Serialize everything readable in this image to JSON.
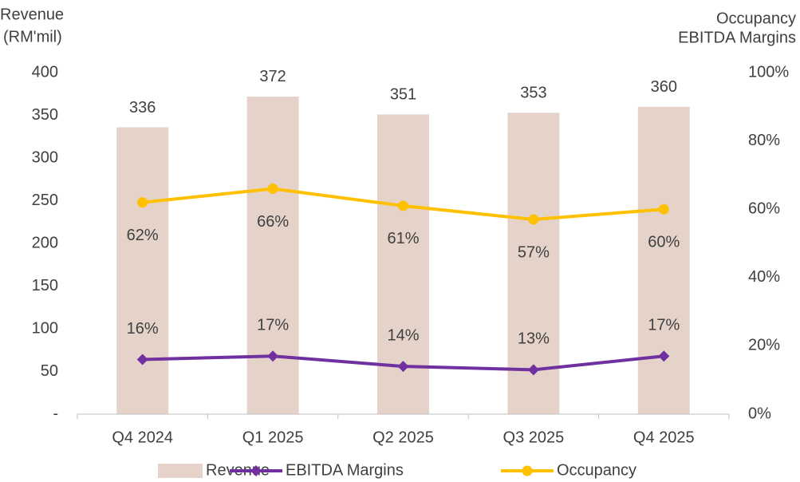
{
  "chart_data": {
    "type": "bar_line",
    "ylabel": [
      "Revenue",
      "(RM'mil)"
    ],
    "y2label": [
      "Occupancy",
      "EBITDA Margins"
    ],
    "categories": [
      "Q4 2024",
      "Q1 2025",
      "Q2 2025",
      "Q3 2025",
      "Q4 2025"
    ],
    "series": [
      {
        "name": "Revenue",
        "type": "bar",
        "color": "#e5d3ca",
        "values": [
          336,
          372,
          351,
          353,
          360
        ]
      },
      {
        "name": "EBITDA Margins",
        "type": "line",
        "marker": "diamond",
        "axis": "y2",
        "color": "#7030a0",
        "values": [
          16,
          17,
          14,
          13,
          17
        ],
        "value_labels": [
          "16%",
          "17%",
          "14%",
          "13%",
          "17%"
        ]
      },
      {
        "name": "Occupancy",
        "type": "line",
        "marker": "circle",
        "axis": "y2",
        "color": "#ffc000",
        "values": [
          62,
          66,
          61,
          57,
          60
        ],
        "value_labels": [
          "62%",
          "66%",
          "61%",
          "57%",
          "60%"
        ]
      }
    ],
    "ylim": [
      0,
      400
    ],
    "yticks": [
      {
        "value": 0,
        "label": "-"
      },
      50,
      100,
      150,
      200,
      250,
      300,
      350,
      400
    ],
    "y2lim": [
      0,
      100
    ],
    "y2ticks": [
      {
        "value": 0,
        "label": "0%"
      },
      {
        "value": 20,
        "label": "20%"
      },
      {
        "value": 40,
        "label": "40%"
      },
      {
        "value": 60,
        "label": "60%"
      },
      {
        "value": 80,
        "label": "80%"
      },
      {
        "value": 100,
        "label": "100%"
      }
    ],
    "grid": false,
    "legend": "bottom"
  }
}
